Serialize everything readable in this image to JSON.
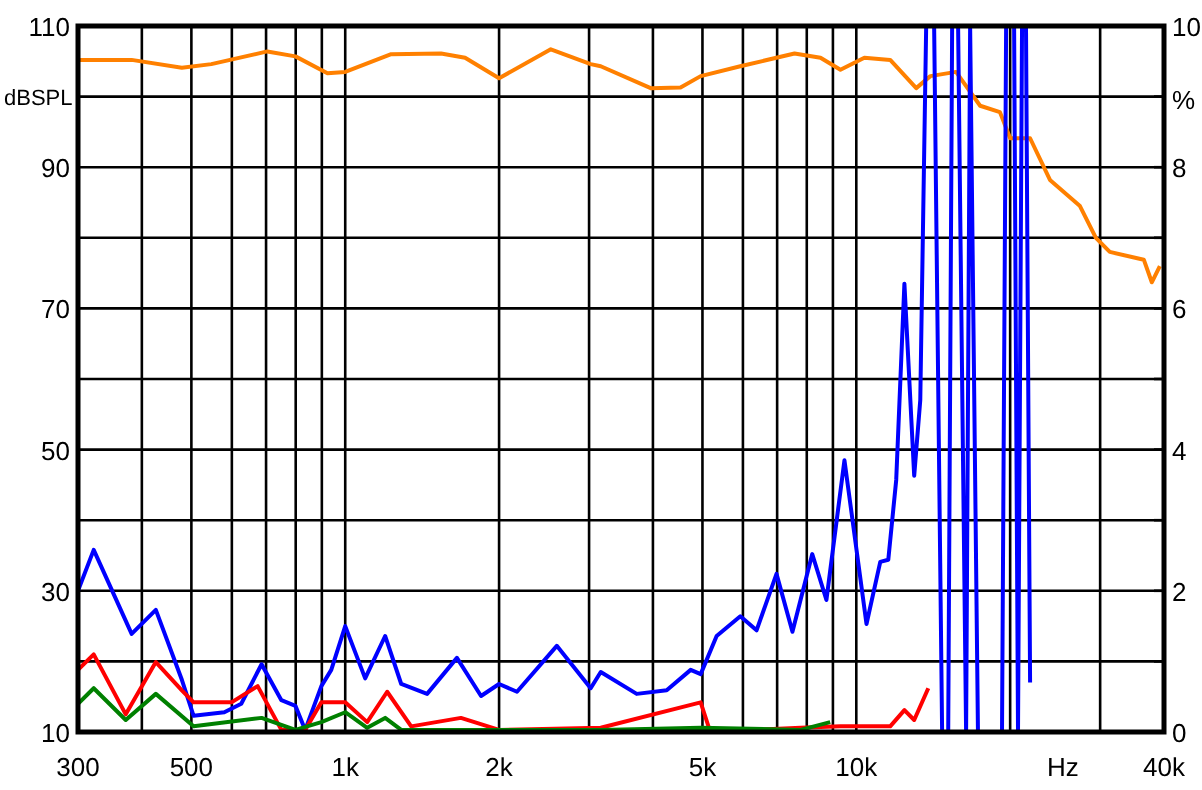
{
  "chart_data": {
    "type": "line",
    "xlabel": "Hz",
    "ylabel": "dBSPL",
    "y2label": "%",
    "log": "x",
    "grid": true,
    "line_style": "solid",
    "marker": "none",
    "xlim": [
      300,
      40000
    ],
    "xticks": [
      300,
      {
        "value": 400,
        "label": null
      },
      500,
      {
        "value": 600,
        "label": null
      },
      {
        "value": 700,
        "label": null
      },
      {
        "value": 800,
        "label": null
      },
      {
        "value": 900,
        "label": null
      },
      {
        "value": 1000,
        "label": "1k"
      },
      {
        "value": 2000,
        "label": "2k"
      },
      {
        "value": 3000,
        "label": null
      },
      {
        "value": 4000,
        "label": null
      },
      {
        "value": 5000,
        "label": "5k"
      },
      {
        "value": 6000,
        "label": null
      },
      {
        "value": 7000,
        "label": null
      },
      {
        "value": 8000,
        "label": null
      },
      {
        "value": 9000,
        "label": null
      },
      {
        "value": 10000,
        "label": "10k"
      },
      {
        "value": 20000,
        "label": null
      },
      {
        "value": 30000,
        "label": null
      },
      {
        "value": 40000,
        "label": "40k"
      }
    ],
    "ylim": [
      10,
      110
    ],
    "yticks": [
      10,
      {
        "value": 20,
        "label": null
      },
      30,
      {
        "value": 40,
        "label": null
      },
      50,
      {
        "value": 60,
        "label": null
      },
      70,
      {
        "value": 80,
        "label": null
      },
      90,
      {
        "value": 100,
        "label": null
      },
      110
    ],
    "y2lim": [
      0,
      10
    ],
    "y2ticks": [
      0,
      {
        "value": 1,
        "label": null
      },
      2,
      {
        "value": 3,
        "label": null
      },
      4,
      {
        "value": 5,
        "label": null
      },
      6,
      {
        "value": 7,
        "label": null
      },
      8,
      {
        "value": 9,
        "label": null
      },
      10
    ],
    "series": [
      {
        "color": "#ff8000",
        "x": [
          300,
          382,
          479,
          547,
          704,
          799,
          923,
          1000,
          1230,
          1540,
          1716,
          2000,
          2525,
          3022,
          3162,
          3960,
          4530,
          4960,
          5930,
          7570,
          8510,
          9310,
          10370,
          11650,
          13100,
          13960,
          15670,
          17470,
          19100,
          20000,
          21880,
          23930,
          27390,
          29430,
          31330,
          36520,
          37860,
          39260
        ],
        "values": [
          105.2,
          105.2,
          104.1,
          104.6,
          106.4,
          105.7,
          103.3,
          103.5,
          106,
          106.1,
          105.5,
          102.6,
          106.7,
          104.6,
          104.3,
          101.2,
          101.3,
          102.9,
          104.3,
          106.1,
          105.5,
          103.8,
          105.5,
          105.2,
          101.2,
          102.9,
          103.5,
          98.7,
          97.8,
          94.1,
          94.1,
          88.2,
          84.5,
          80,
          78,
          76.9,
          73.7,
          76
        ]
      },
      {
        "color": "#0000ff",
        "axis": "y2",
        "x": [
          300,
          322,
          382,
          426,
          479,
          505,
          580,
          626,
          686,
          750,
          799,
          835,
          898,
          939,
          1000,
          1094,
          1197,
          1287,
          1446,
          1654,
          1844,
          2000,
          2168,
          2594,
          3022,
          3162,
          3718,
          4256,
          4742,
          4960,
          5330,
          5930,
          6380,
          6980,
          7500,
          8200,
          8740,
          9480,
          10470,
          11140,
          11550,
          11970,
          12420,
          12980,
          13340,
          13700,
          14200,
          14720,
          15130,
          15400,
          15820,
          16400,
          16700,
          17300,
          19280,
          19640,
          20360,
          20720,
          21100,
          21480,
          21880
        ],
        "values": [
          2.0,
          2.58,
          1.39,
          1.73,
          0.74,
          0.23,
          0.28,
          0.4,
          0.96,
          0.45,
          0.37,
          0.03,
          0.65,
          0.88,
          1.5,
          0.76,
          1.36,
          0.68,
          0.54,
          1.05,
          0.51,
          0.68,
          0.57,
          1.22,
          0.62,
          0.85,
          0.54,
          0.59,
          0.88,
          0.82,
          1.36,
          1.64,
          1.44,
          2.24,
          1.42,
          2.52,
          1.87,
          3.85,
          1.53,
          2.41,
          2.44,
          3.57,
          6.35,
          3.63,
          4.7,
          10,
          10,
          0,
          0,
          10,
          10,
          0,
          10,
          0,
          0,
          10,
          10,
          0,
          10,
          10,
          0.7
        ]
      },
      {
        "color": "#ff0000",
        "axis": "y2",
        "x": [
          300,
          322,
          372,
          426,
          479,
          505,
          599,
          674,
          750,
          835,
          898,
          1000,
          1104,
          1208,
          1346,
          1684,
          2000,
          3162,
          4960,
          5180,
          7780,
          9310,
          11650,
          12420,
          12980,
          13830
        ],
        "values": [
          0.88,
          1.1,
          0.25,
          0.99,
          0.59,
          0.42,
          0.42,
          0.65,
          0.03,
          0.03,
          0.42,
          0.42,
          0.14,
          0.57,
          0.08,
          0.2,
          0.03,
          0.06,
          0.42,
          0,
          0.06,
          0.08,
          0.08,
          0.31,
          0.17,
          0.62
        ]
      },
      {
        "color": "#008000",
        "axis": "y2",
        "x": [
          300,
          322,
          372,
          426,
          505,
          686,
          799,
          898,
          1000,
          1104,
          1197,
          1287,
          2000,
          3162,
          4960,
          7780,
          8890
        ],
        "values": [
          0.4,
          0.62,
          0.17,
          0.54,
          0.08,
          0.2,
          0.03,
          0.14,
          0.28,
          0.06,
          0.2,
          0.03,
          0.03,
          0.03,
          0.06,
          0.03,
          0.14
        ]
      }
    ]
  }
}
